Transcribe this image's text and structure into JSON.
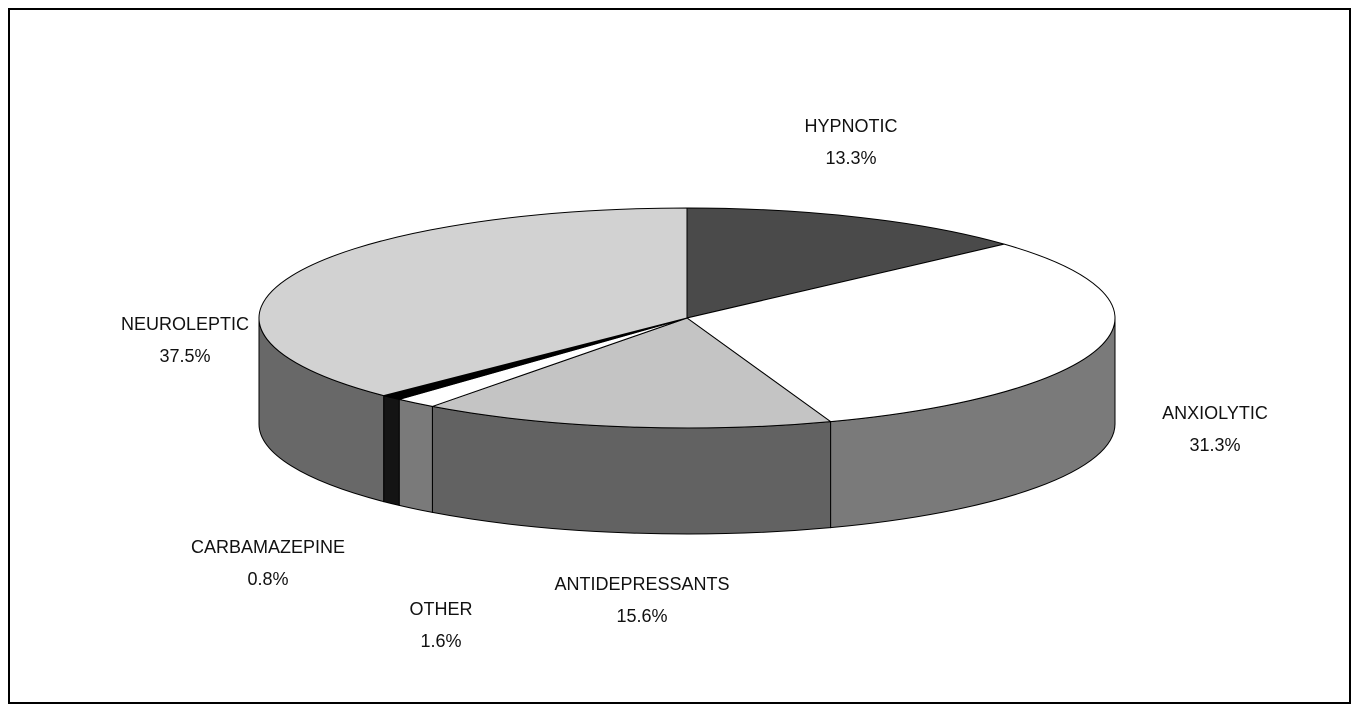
{
  "chart_data": {
    "type": "pie",
    "categories": [
      "HYPNOTIC",
      "ANXIOLYTIC",
      "ANTIDEPRESSANTS",
      "OTHER",
      "CARBAMAZEPINE",
      "NEUROLEPTIC"
    ],
    "values": [
      13.3,
      31.3,
      15.6,
      1.6,
      0.8,
      37.5
    ],
    "value_labels": [
      "13.3%",
      "31.3%",
      "15.6%",
      "1.6%",
      "0.8%",
      "37.5%"
    ],
    "colors": [
      "#4a4a4a",
      "#ffffff",
      "#c4c4c4",
      "#ffffff",
      "#000000",
      "#d2d2d2"
    ]
  }
}
